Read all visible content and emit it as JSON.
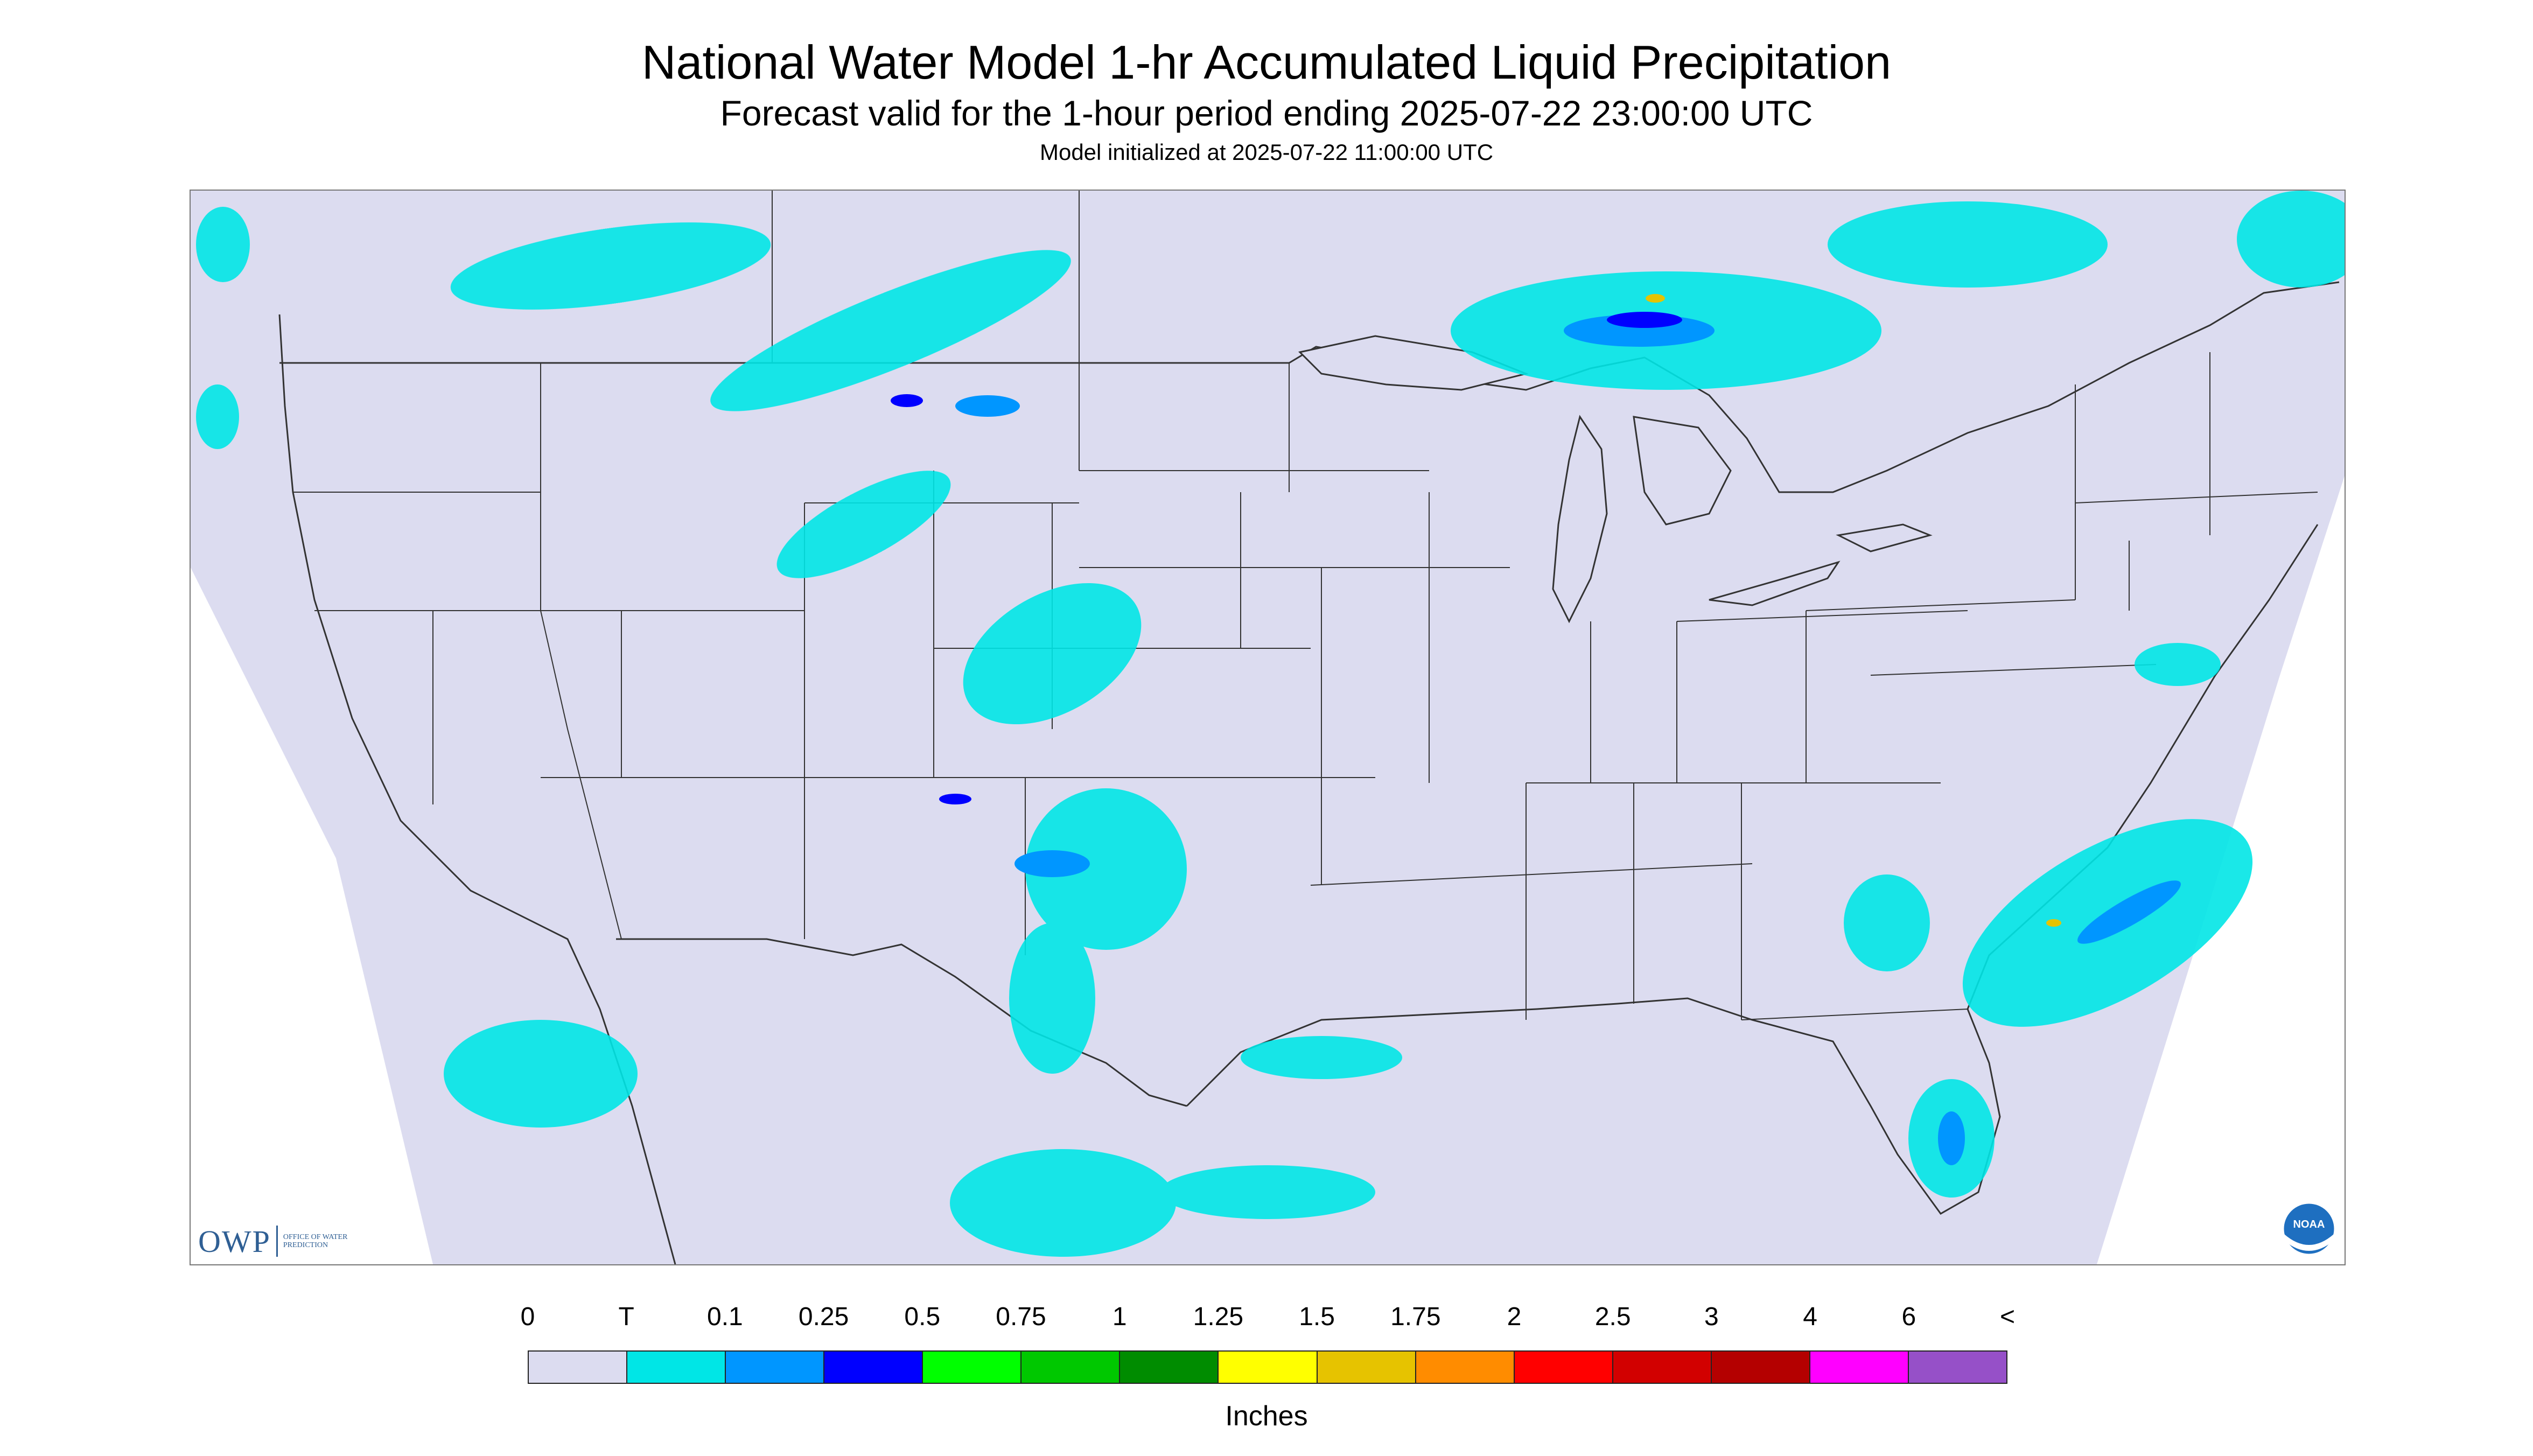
{
  "title": "National Water Model 1-hr Accumulated Liquid Precipitation",
  "subtitle": "Forecast valid for the 1-hour period ending 2025-07-22 23:00:00 UTC",
  "init_line": "Model initialized at 2025-07-22 11:00:00 UTC",
  "logos": {
    "owp_text": "OWP",
    "owp_subtext": "OFFICE OF WATER PREDICTION",
    "noaa_text": "NOAA"
  },
  "legend": {
    "labels": [
      "0",
      "T",
      "0.1",
      "0.25",
      "0.5",
      "0.75",
      "1",
      "1.25",
      "1.5",
      "1.75",
      "2",
      "2.5",
      "3",
      "4",
      "6",
      "<"
    ],
    "colors": [
      "#dcdcf0",
      "#00e6e6",
      "#0096ff",
      "#0000ff",
      "#00ff00",
      "#00c800",
      "#008c00",
      "#ffff00",
      "#e6c300",
      "#ff8c00",
      "#ff0000",
      "#d20000",
      "#b40000",
      "#ff00ff",
      "#9650c8"
    ],
    "units": "Inches"
  },
  "map_colors": {
    "domain_fill": "#dcdcf0",
    "outside_fill": "#ffffff",
    "boundary_line": "#333333",
    "trace": "#00e6e6",
    "light": "#0096ff",
    "moderate": "#0000ff",
    "heavy": "#00c800",
    "very_heavy": "#e6c300"
  }
}
